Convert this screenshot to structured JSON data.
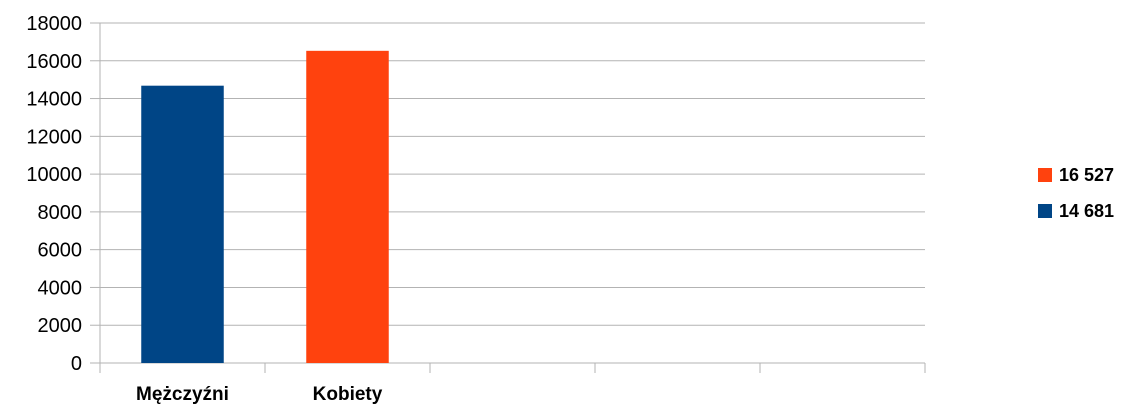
{
  "chart_data": {
    "type": "bar",
    "categories": [
      "Mężczyźni",
      "Kobiety",
      "",
      "",
      ""
    ],
    "values": [
      14681,
      16527,
      null,
      null,
      null
    ],
    "bar_colors": [
      "#004586",
      "#ff420e"
    ],
    "title": "",
    "xlabel": "",
    "ylabel": "",
    "ylim": [
      0,
      18000
    ],
    "yticks": [
      0,
      2000,
      4000,
      6000,
      8000,
      10000,
      12000,
      14000,
      16000,
      18000
    ],
    "grid": true,
    "legend": {
      "placement": "right",
      "entries": [
        {
          "label": "16 527",
          "color": "#ff420e"
        },
        {
          "label": "14 681",
          "color": "#004586"
        }
      ]
    }
  }
}
